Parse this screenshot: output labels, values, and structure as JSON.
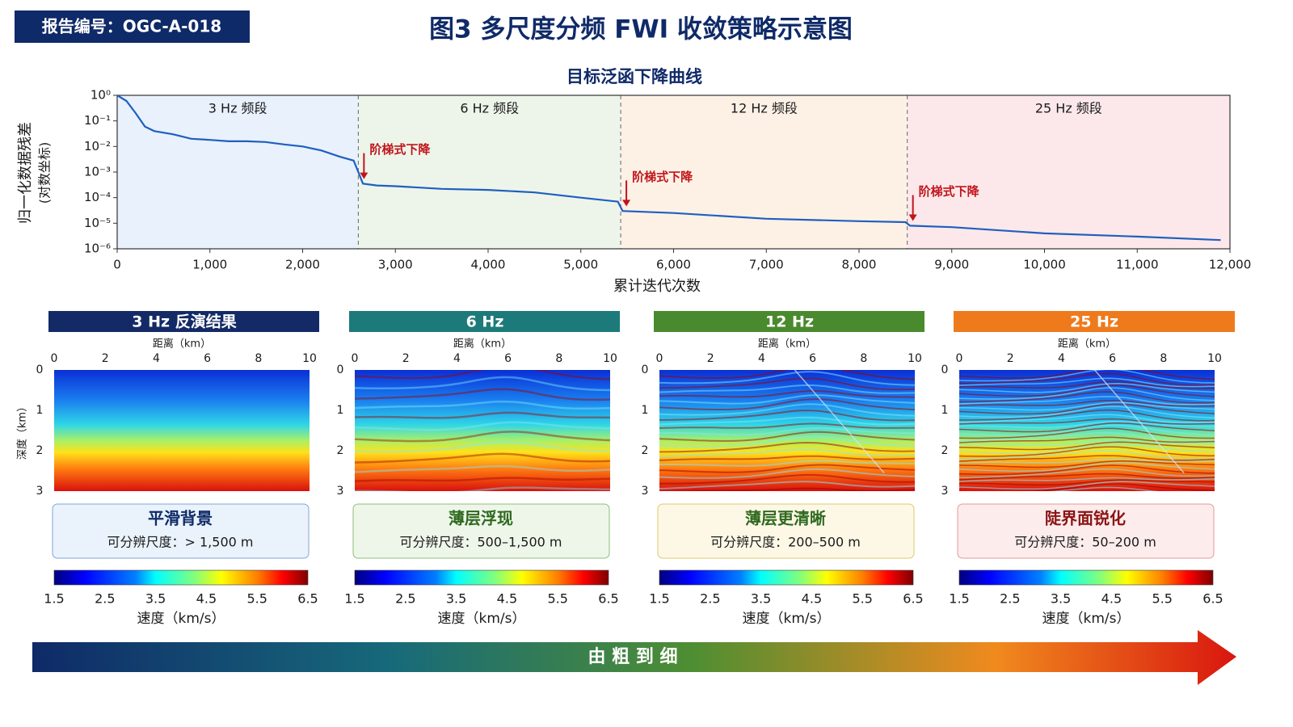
{
  "report_id": "报告编号：OGC-A-018",
  "title": "图3  多尺度分频 FWI 收敛策略示意图",
  "chart_data": {
    "type": "line",
    "title": "目标泛函下降曲线",
    "x_label": "累计迭代次数",
    "y_label": "归一化数据残差",
    "y_label_note": "(对数坐标)",
    "xlim": [
      0,
      12000
    ],
    "xticks": [
      0,
      {
        "value": 1000,
        "label": "1,000"
      },
      {
        "value": 2000,
        "label": "2,000"
      },
      {
        "value": 3000,
        "label": "3,000"
      },
      {
        "value": 4000,
        "label": "4,000"
      },
      {
        "value": 5000,
        "label": "5,000"
      },
      {
        "value": 6000,
        "label": "6,000"
      },
      {
        "value": 7000,
        "label": "7,000"
      },
      {
        "value": 8000,
        "label": "8,000"
      },
      {
        "value": 9000,
        "label": "9,000"
      },
      {
        "value": 10000,
        "label": "10,000"
      },
      {
        "value": 11000,
        "label": "11,000"
      },
      {
        "value": 12000,
        "label": "12,000"
      }
    ],
    "ylim": [
      1e-06,
      1
    ],
    "log_y": true,
    "yticks": [
      {
        "value": 1,
        "label": "10⁰"
      },
      {
        "value": 0.1,
        "label": "10⁻¹"
      },
      {
        "value": 0.01,
        "label": "10⁻²"
      },
      {
        "value": 0.001,
        "label": "10⁻³"
      },
      {
        "value": 0.0001,
        "label": "10⁻⁴"
      },
      {
        "value": 1e-05,
        "label": "10⁻⁵"
      },
      {
        "value": 1e-06,
        "label": "10⁻⁶"
      }
    ],
    "x": [
      0,
      100,
      200,
      300,
      400,
      600,
      800,
      1000,
      1200,
      1400,
      1600,
      1800,
      2000,
      2200,
      2400,
      2550,
      2600,
      2650,
      2800,
      3000,
      3500,
      4000,
      4500,
      5000,
      5400,
      5450,
      6000,
      7000,
      8000,
      8500,
      8550,
      9000,
      10000,
      11000,
      11900
    ],
    "series": [
      {
        "color": "#1f5fbf",
        "values": [
          1,
          0.6,
          0.2,
          0.06,
          0.04,
          0.03,
          0.02,
          0.018,
          0.016,
          0.016,
          0.015,
          0.012,
          0.01,
          0.007,
          0.004,
          0.0028,
          0.001,
          0.00035,
          0.0003,
          0.00028,
          0.00022,
          0.0002,
          0.00016,
          0.0001,
          7e-05,
          3e-05,
          2.5e-05,
          1.5e-05,
          1.2e-05,
          1.1e-05,
          8e-06,
          7e-06,
          4e-06,
          3e-06,
          2.2e-06
        ]
      }
    ],
    "stages": [
      {
        "label": "3 Hz 频段",
        "start": 0,
        "end": 2600,
        "color": "#e8f1fc"
      },
      {
        "label": "6 Hz 频段",
        "start": 2600,
        "end": 5430,
        "color": "#edf5ea",
        "annotation": "阶梯式下降"
      },
      {
        "label": "12 Hz 频段",
        "start": 5430,
        "end": 8520,
        "color": "#fdf1e6",
        "annotation": "阶梯式下降"
      },
      {
        "label": "25 Hz 频段",
        "start": 8520,
        "end": 12000,
        "color": "#fce8ea",
        "annotation": "阶梯式下降"
      }
    ]
  },
  "panels": [
    {
      "title": "3 Hz 反演结果",
      "header_color": "#132a66",
      "x_label": "距离（km）",
      "y_label": "深度（km）",
      "x_lim": [
        0,
        10
      ],
      "x_ticks": [
        0,
        2,
        4,
        6,
        8,
        10
      ],
      "y_lim": [
        0,
        3
      ],
      "y_ticks": [
        0,
        1,
        2,
        3
      ],
      "caption_title": "平滑背景",
      "caption_text": "可分辨尺度：> 1,500 m",
      "colorbar_lim": [
        1.5,
        6.5
      ],
      "colorbar_ticks": [
        1.5,
        2.5,
        3.5,
        4.5,
        5.5,
        6.5
      ],
      "colorbar_label": "速度（km/s）"
    },
    {
      "title": "6 Hz",
      "header_color": "#1d7a7a",
      "x_label": "距离（km）",
      "x_lim": [
        0,
        10
      ],
      "x_ticks": [
        0,
        2,
        4,
        6,
        8,
        10
      ],
      "y_lim": [
        0,
        3
      ],
      "y_ticks": [
        0,
        1,
        2,
        3
      ],
      "caption_title": "薄层浮现",
      "caption_text": "可分辨尺度：500–1,500 m",
      "colorbar_lim": [
        1.5,
        6.5
      ],
      "colorbar_ticks": [
        1.5,
        2.5,
        3.5,
        4.5,
        5.5,
        6.5
      ],
      "colorbar_label": "速度（km/s）"
    },
    {
      "title": "12 Hz",
      "header_color": "#4a8a2e",
      "x_label": "距离（km）",
      "x_lim": [
        0,
        10
      ],
      "x_ticks": [
        0,
        2,
        4,
        6,
        8,
        10
      ],
      "y_lim": [
        0,
        3
      ],
      "y_ticks": [
        0,
        1,
        2,
        3
      ],
      "caption_title": "薄层更清晰",
      "caption_text": "可分辨尺度：200–500 m",
      "colorbar_lim": [
        1.5,
        6.5
      ],
      "colorbar_ticks": [
        1.5,
        2.5,
        3.5,
        4.5,
        5.5,
        6.5
      ],
      "colorbar_label": "速度（km/s）"
    },
    {
      "title": "25 Hz",
      "header_color": "#ee7a1c",
      "x_label": "距离（km）",
      "x_lim": [
        0,
        10
      ],
      "x_ticks": [
        0,
        2,
        4,
        6,
        8,
        10
      ],
      "y_lim": [
        0,
        3
      ],
      "y_ticks": [
        0,
        1,
        2,
        3
      ],
      "caption_title": "陡界面锐化",
      "caption_text": "可分辨尺度：50–200 m",
      "colorbar_lim": [
        1.5,
        6.5
      ],
      "colorbar_ticks": [
        1.5,
        2.5,
        3.5,
        4.5,
        5.5,
        6.5
      ],
      "colorbar_label": "速度（km/s）"
    }
  ],
  "progression": "由 粗 到 细"
}
